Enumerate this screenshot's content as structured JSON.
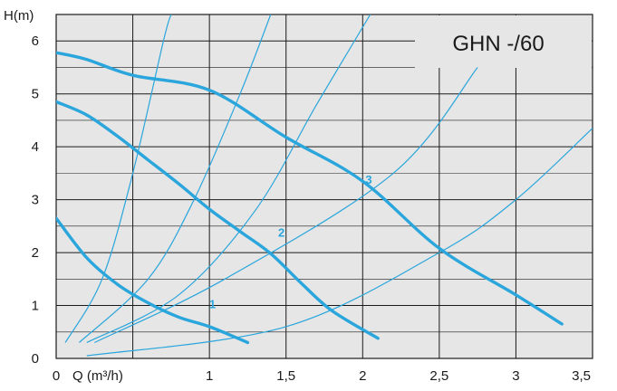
{
  "chart_data": {
    "type": "line",
    "title": "GHN -/60",
    "xlabel": "Q (m³/h)",
    "ylabel": "H(m)",
    "xlim": [
      0,
      3.5
    ],
    "ylim": [
      0,
      6.5
    ],
    "x_ticks": [
      {
        "value": 0,
        "label": "0"
      },
      {
        "value": 1,
        "label": "1"
      },
      {
        "value": 1.5,
        "label": "1,5"
      },
      {
        "value": 2,
        "label": "2"
      },
      {
        "value": 2.5,
        "label": "2,5"
      },
      {
        "value": 3,
        "label": "3"
      },
      {
        "value": 3.5,
        "label": "3,5"
      }
    ],
    "y_ticks": [
      {
        "value": 0,
        "label": "0"
      },
      {
        "value": 1,
        "label": "1"
      },
      {
        "value": 2,
        "label": "2"
      },
      {
        "value": 3,
        "label": "3"
      },
      {
        "value": 4,
        "label": "4"
      },
      {
        "value": 5,
        "label": "5"
      },
      {
        "value": 6,
        "label": "6"
      }
    ],
    "x_gridlines": [
      0.5,
      1,
      1.5,
      2,
      2.5,
      3
    ],
    "y_gridlines": [
      0.5,
      1,
      1.5,
      2,
      2.5,
      3,
      3.5,
      4,
      4.5,
      5,
      5.5,
      6
    ],
    "grid": true,
    "accent_color": "#2aa6dc",
    "pump_curves": [
      {
        "label": "1",
        "label_at": [
          1.02,
          0.95
        ],
        "points": [
          [
            0,
            2.65
          ],
          [
            0.2,
            1.9
          ],
          [
            0.4,
            1.4
          ],
          [
            0.6,
            1.05
          ],
          [
            0.8,
            0.78
          ],
          [
            1.0,
            0.6
          ],
          [
            1.25,
            0.3
          ]
        ]
      },
      {
        "label": "2",
        "label_at": [
          1.47,
          2.3
        ],
        "points": [
          [
            0,
            4.85
          ],
          [
            0.2,
            4.6
          ],
          [
            0.4,
            4.2
          ],
          [
            0.6,
            3.75
          ],
          [
            0.8,
            3.3
          ],
          [
            1.0,
            2.82
          ],
          [
            1.2,
            2.4
          ],
          [
            1.4,
            1.98
          ],
          [
            1.6,
            1.42
          ],
          [
            1.8,
            0.9
          ],
          [
            2.1,
            0.38
          ]
        ]
      },
      {
        "label": "3",
        "label_at": [
          2.04,
          3.3
        ],
        "points": [
          [
            0,
            5.78
          ],
          [
            0.2,
            5.65
          ],
          [
            0.5,
            5.35
          ],
          [
            1.0,
            5.07
          ],
          [
            1.5,
            4.18
          ],
          [
            2.0,
            3.35
          ],
          [
            2.5,
            2.08
          ],
          [
            3.0,
            1.2
          ],
          [
            3.3,
            0.65
          ]
        ]
      }
    ],
    "system_curves": [
      {
        "points": [
          [
            0.06,
            0.3
          ],
          [
            0.3,
            1.5
          ],
          [
            0.5,
            3.5
          ],
          [
            0.7,
            6.0
          ],
          [
            0.75,
            6.5
          ]
        ]
      },
      {
        "points": [
          [
            0.15,
            0.3
          ],
          [
            0.6,
            1.5
          ],
          [
            0.9,
            3.0
          ],
          [
            1.2,
            5.0
          ],
          [
            1.4,
            6.5
          ]
        ]
      },
      {
        "points": [
          [
            0.2,
            0.3
          ],
          [
            0.8,
            1.2
          ],
          [
            1.3,
            2.8
          ],
          [
            1.7,
            4.8
          ],
          [
            2.05,
            6.5
          ]
        ]
      },
      {
        "points": [
          [
            0.25,
            0.3
          ],
          [
            1.1,
            1.5
          ],
          [
            2.2,
            3.5
          ],
          [
            2.75,
            5.5
          ]
        ]
      },
      {
        "points": [
          [
            0.2,
            0.05
          ],
          [
            1.5,
            0.6
          ],
          [
            2.5,
            2.0
          ],
          [
            3.0,
            3.0
          ],
          [
            3.5,
            4.35
          ]
        ]
      }
    ]
  }
}
